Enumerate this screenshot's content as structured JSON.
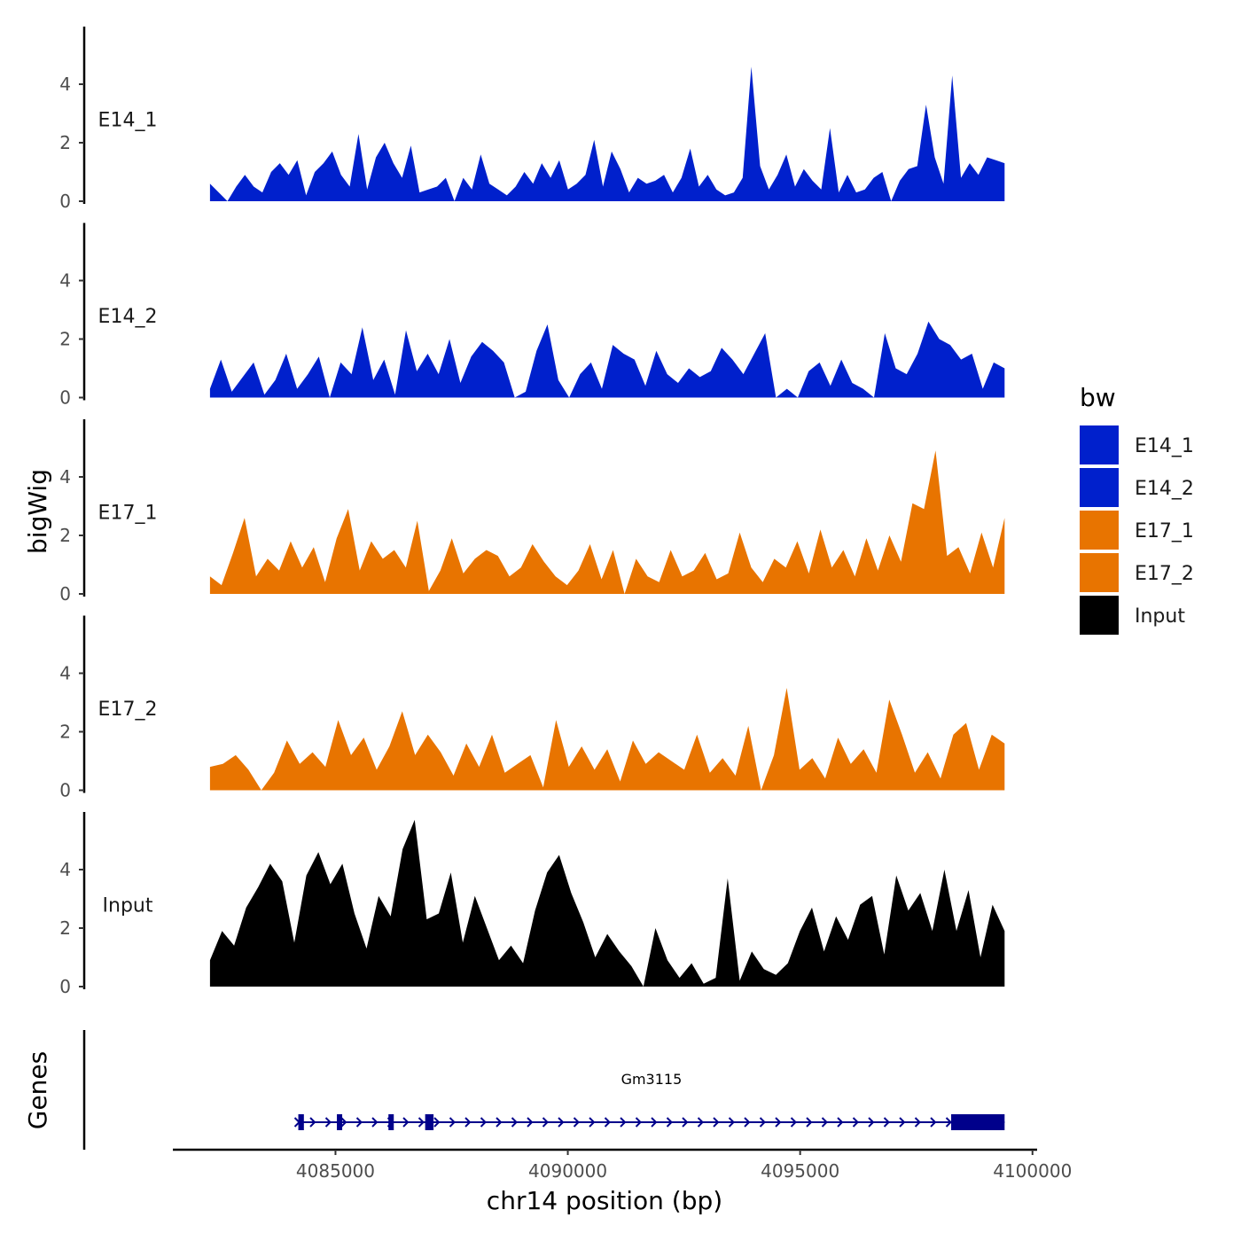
{
  "chart_data": {
    "type": "area",
    "title": "",
    "xlabel": "chr14 position (bp)",
    "ylabel": "bigWig",
    "genes_label": "Genes",
    "xlim": [
      4081500,
      4100100
    ],
    "ylim": [
      0,
      6
    ],
    "x_ticks": [
      4085000,
      4090000,
      4095000,
      4100000
    ],
    "x_tick_labels": [
      "4085000",
      "4090000",
      "4095000",
      "4100000"
    ],
    "y_ticks": [
      0,
      2,
      4
    ],
    "y_tick_labels": [
      "0",
      "2",
      "4"
    ],
    "x_start": 4082300,
    "x_end": 4099400,
    "legend": {
      "title": "bw",
      "entries": [
        {
          "label": "E14_1",
          "color": "#0020cc"
        },
        {
          "label": "E14_2",
          "color": "#0020cc"
        },
        {
          "label": "E17_1",
          "color": "#e87400"
        },
        {
          "label": "E17_2",
          "color": "#e87400"
        },
        {
          "label": "Input",
          "color": "#000000"
        }
      ]
    },
    "series": [
      {
        "name": "E14_1",
        "color": "#0020cc",
        "values": [
          0.6,
          0.3,
          0.0,
          0.5,
          0.9,
          0.5,
          0.3,
          1.0,
          1.3,
          0.9,
          1.4,
          0.2,
          1.0,
          1.3,
          1.7,
          0.9,
          0.5,
          2.3,
          0.4,
          1.5,
          2.0,
          1.3,
          0.8,
          1.9,
          0.3,
          0.4,
          0.5,
          0.8,
          0.0,
          0.8,
          0.4,
          1.6,
          0.6,
          0.4,
          0.2,
          0.5,
          1.0,
          0.6,
          1.3,
          0.8,
          1.4,
          0.4,
          0.6,
          0.9,
          2.1,
          0.5,
          1.7,
          1.1,
          0.3,
          0.8,
          0.6,
          0.7,
          0.9,
          0.3,
          0.8,
          1.8,
          0.5,
          0.9,
          0.4,
          0.2,
          0.3,
          0.8,
          4.6,
          1.2,
          0.4,
          0.9,
          1.6,
          0.5,
          1.1,
          0.7,
          0.4,
          2.5,
          0.3,
          0.9,
          0.3,
          0.4,
          0.8,
          1.0,
          0.0,
          0.7,
          1.1,
          1.2,
          3.3,
          1.5,
          0.6,
          4.3,
          0.8,
          1.3,
          0.9,
          1.5,
          1.4,
          1.3
        ]
      },
      {
        "name": "E14_2",
        "color": "#0020cc",
        "values": [
          0.3,
          1.3,
          0.2,
          0.7,
          1.2,
          0.1,
          0.6,
          1.5,
          0.3,
          0.8,
          1.4,
          0.0,
          1.2,
          0.8,
          2.4,
          0.6,
          1.3,
          0.1,
          2.3,
          0.9,
          1.5,
          0.8,
          2.0,
          0.5,
          1.4,
          1.9,
          1.6,
          1.2,
          0.0,
          0.2,
          1.6,
          2.5,
          0.6,
          0.0,
          0.8,
          1.2,
          0.3,
          1.8,
          1.5,
          1.3,
          0.4,
          1.6,
          0.8,
          0.5,
          1.0,
          0.7,
          0.9,
          1.7,
          1.3,
          0.8,
          1.5,
          2.2,
          0.0,
          0.3,
          0.0,
          0.9,
          1.2,
          0.4,
          1.3,
          0.5,
          0.3,
          0.0,
          2.2,
          1.0,
          0.8,
          1.5,
          2.6,
          2.0,
          1.8,
          1.3,
          1.5,
          0.3,
          1.2,
          1.0
        ]
      },
      {
        "name": "E17_1",
        "color": "#e87400",
        "values": [
          0.6,
          0.3,
          1.4,
          2.6,
          0.6,
          1.2,
          0.8,
          1.8,
          0.9,
          1.6,
          0.4,
          1.9,
          2.9,
          0.8,
          1.8,
          1.2,
          1.5,
          0.9,
          2.5,
          0.1,
          0.8,
          1.9,
          0.7,
          1.2,
          1.5,
          1.3,
          0.6,
          0.9,
          1.7,
          1.1,
          0.6,
          0.3,
          0.8,
          1.7,
          0.5,
          1.5,
          0.0,
          1.2,
          0.6,
          0.4,
          1.5,
          0.6,
          0.8,
          1.4,
          0.5,
          0.7,
          2.1,
          0.9,
          0.4,
          1.2,
          0.9,
          1.8,
          0.7,
          2.2,
          0.9,
          1.5,
          0.6,
          1.9,
          0.8,
          2.0,
          1.1,
          3.1,
          2.9,
          4.9,
          1.3,
          1.6,
          0.7,
          2.1,
          0.9,
          2.6
        ]
      },
      {
        "name": "E17_2",
        "color": "#e87400",
        "values": [
          0.8,
          0.9,
          1.2,
          0.7,
          0.0,
          0.6,
          1.7,
          0.9,
          1.3,
          0.8,
          2.4,
          1.2,
          1.8,
          0.7,
          1.5,
          2.7,
          1.2,
          1.9,
          1.3,
          0.5,
          1.6,
          0.8,
          1.9,
          0.6,
          0.9,
          1.2,
          0.1,
          2.4,
          0.8,
          1.5,
          0.7,
          1.4,
          0.3,
          1.7,
          0.9,
          1.3,
          1.0,
          0.7,
          1.9,
          0.6,
          1.1,
          0.5,
          2.2,
          0.0,
          1.2,
          3.5,
          0.7,
          1.1,
          0.4,
          1.8,
          0.9,
          1.4,
          0.6,
          3.1,
          1.9,
          0.6,
          1.3,
          0.4,
          1.9,
          2.3,
          0.7,
          1.9,
          1.6
        ]
      },
      {
        "name": "Input",
        "color": "#000000",
        "values": [
          0.9,
          1.9,
          1.4,
          2.7,
          3.4,
          4.2,
          3.6,
          1.5,
          3.8,
          4.6,
          3.5,
          4.2,
          2.5,
          1.3,
          3.1,
          2.4,
          4.7,
          5.7,
          2.3,
          2.5,
          3.9,
          1.5,
          3.1,
          2.0,
          0.9,
          1.4,
          0.8,
          2.6,
          3.9,
          4.5,
          3.2,
          2.2,
          1.0,
          1.8,
          1.2,
          0.7,
          0.0,
          2.0,
          0.9,
          0.3,
          0.8,
          0.1,
          0.3,
          3.7,
          0.2,
          1.2,
          0.6,
          0.4,
          0.8,
          1.9,
          2.7,
          1.2,
          2.4,
          1.6,
          2.8,
          3.1,
          1.1,
          3.8,
          2.6,
          3.2,
          1.9,
          4.0,
          1.9,
          3.3,
          1.0,
          2.8,
          1.9
        ]
      }
    ],
    "gene": {
      "name": "Gm3115",
      "start": 4084200,
      "end": 4099400,
      "strand": "+",
      "exons": [
        [
          4084200,
          4084320
        ],
        [
          4085030,
          4085140
        ],
        [
          4086140,
          4086250
        ],
        [
          4086930,
          4087110
        ],
        [
          4098250,
          4099400
        ]
      ]
    }
  }
}
